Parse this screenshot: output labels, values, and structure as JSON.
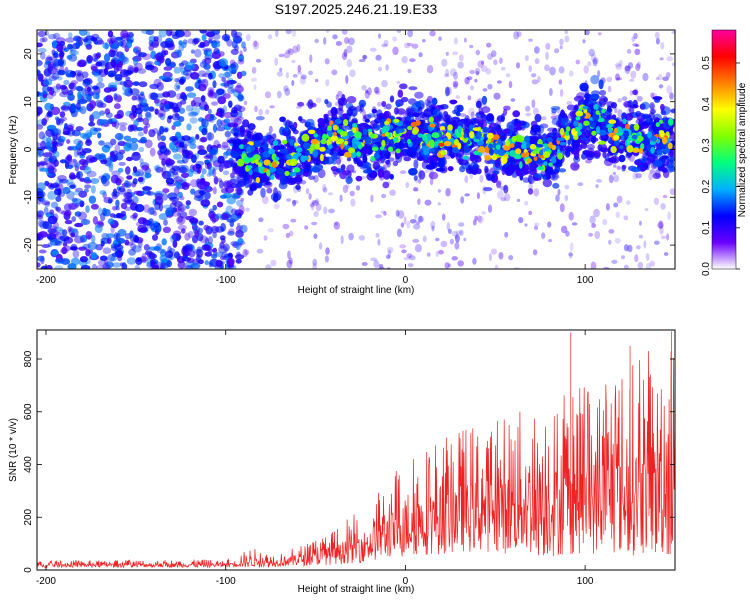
{
  "chart_data": [
    {
      "type": "heatmap",
      "title": "S197.2025.246.21.19.E33",
      "xlabel": "Height of straight line (km)",
      "ylabel": "Frequency (Hz)",
      "xlim": [
        -205,
        150
      ],
      "ylim": [
        -25,
        25
      ],
      "xticks": [
        -200,
        -100,
        0,
        100
      ],
      "yticks": [
        -20,
        -10,
        0,
        10,
        20
      ],
      "colorbar": {
        "label": "Normalized spectral amplitude",
        "range": [
          0.0,
          0.58
        ],
        "ticks": [
          0.0,
          0.1,
          0.2,
          0.3,
          0.4,
          0.5
        ],
        "tick_labels": [
          "0.0",
          "0.1",
          "0.2",
          "0.3",
          "0.4",
          "0.5"
        ],
        "colormap": [
          "#ffffff",
          "#6a00ff",
          "#0000ff",
          "#00b0ff",
          "#00ff80",
          "#80ff00",
          "#ffff00",
          "#ff8000",
          "#ff0000",
          "#ff00a0"
        ]
      },
      "ridge": {
        "description_x": [
          -95,
          -80,
          -60,
          -40,
          -20,
          0,
          20,
          40,
          60,
          80,
          100,
          120,
          150
        ],
        "center_freq": [
          -1,
          -3,
          -1,
          3,
          1,
          4,
          2,
          2,
          0,
          -1,
          7,
          3,
          2
        ]
      }
    },
    {
      "type": "line",
      "xlabel": "Height of straight line (km)",
      "ylabel": "SNR (10 * v/v)",
      "xlim": [
        -205,
        150
      ],
      "ylim": [
        0,
        910
      ],
      "xticks": [
        -200,
        -100,
        0,
        100
      ],
      "yticks": [
        0,
        200,
        400,
        600,
        800
      ],
      "series": [
        {
          "name": "SNR",
          "color": "#ee2222",
          "envelope_x": [
            -205,
            -150,
            -100,
            -85,
            -75,
            -60,
            -40,
            -20,
            0,
            20,
            40,
            60,
            80,
            100,
            120,
            150
          ],
          "envelope_max": [
            35,
            38,
            40,
            85,
            60,
            90,
            150,
            260,
            420,
            520,
            560,
            600,
            650,
            700,
            760,
            910
          ],
          "envelope_min": [
            10,
            10,
            10,
            10,
            12,
            15,
            20,
            30,
            50,
            60,
            70,
            60,
            50,
            60,
            60,
            40
          ]
        }
      ]
    }
  ]
}
